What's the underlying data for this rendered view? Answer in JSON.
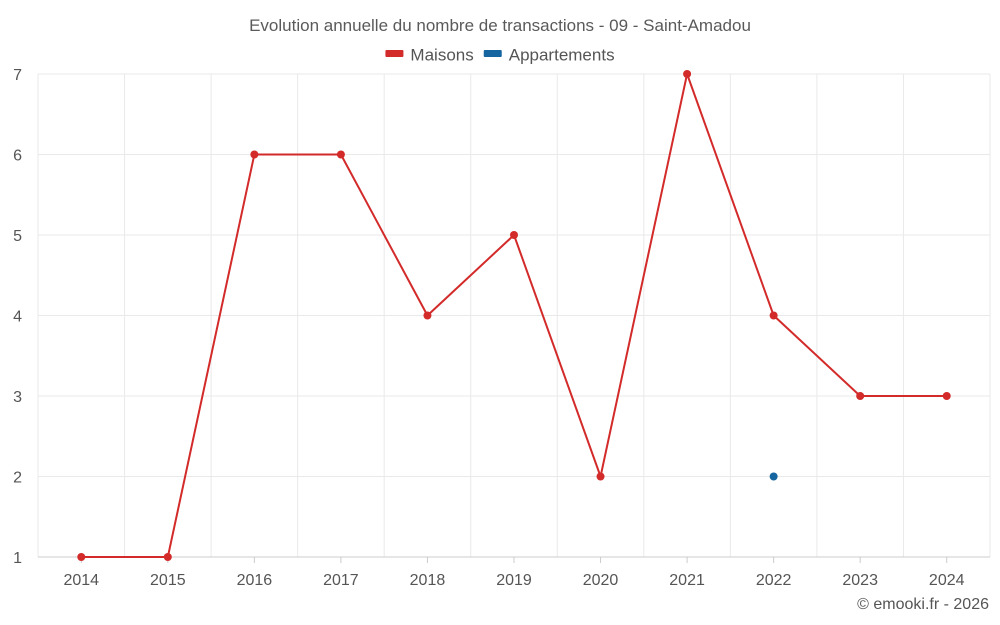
{
  "chart_data": {
    "type": "line",
    "title": "Evolution annuelle du nombre de transactions - 09 - Saint-Amadou",
    "categories": [
      "2014",
      "2015",
      "2016",
      "2017",
      "2018",
      "2019",
      "2020",
      "2021",
      "2022",
      "2023",
      "2024"
    ],
    "ylim": [
      1,
      7
    ],
    "yticks": [
      1,
      2,
      3,
      4,
      5,
      6,
      7
    ],
    "grid": true,
    "legend_position": "top-center",
    "series": [
      {
        "name": "Maisons",
        "color": "#d32a2a",
        "values": [
          1,
          1,
          6,
          6,
          4,
          5,
          2,
          7,
          4,
          3,
          3
        ]
      },
      {
        "name": "Appartements",
        "color": "#1565a0",
        "values": [
          null,
          null,
          null,
          null,
          null,
          null,
          null,
          null,
          2,
          null,
          null
        ]
      }
    ],
    "credit": "© emooki.fr - 2026"
  }
}
